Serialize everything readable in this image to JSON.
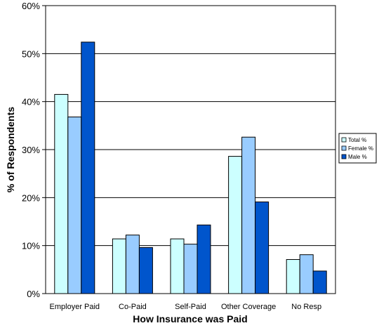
{
  "chart_data": {
    "type": "bar",
    "categories": [
      "Employer Paid",
      "Co-Paid",
      "Self-Paid",
      "Other Coverage",
      "No Resp"
    ],
    "series": [
      {
        "name": "Total %",
        "values": [
          41.5,
          11.4,
          11.4,
          28.6,
          7.1
        ],
        "color": "#ccffff"
      },
      {
        "name": "Female %",
        "values": [
          36.8,
          12.2,
          10.3,
          32.6,
          8.1
        ],
        "color": "#99ccff"
      },
      {
        "name": "Male %",
        "values": [
          52.4,
          9.6,
          14.3,
          19.1,
          4.7
        ],
        "color": "#0055cc"
      }
    ],
    "xlabel": "How Insurance was Paid",
    "ylabel": "% of Respondents",
    "ylim": [
      0,
      60
    ],
    "yticks": [
      "0%",
      "10%",
      "20%",
      "30%",
      "40%",
      "50%",
      "60%"
    ],
    "ytick_values": [
      0,
      10,
      20,
      30,
      40,
      50,
      60
    ],
    "grid": true,
    "legend_position": "right"
  }
}
